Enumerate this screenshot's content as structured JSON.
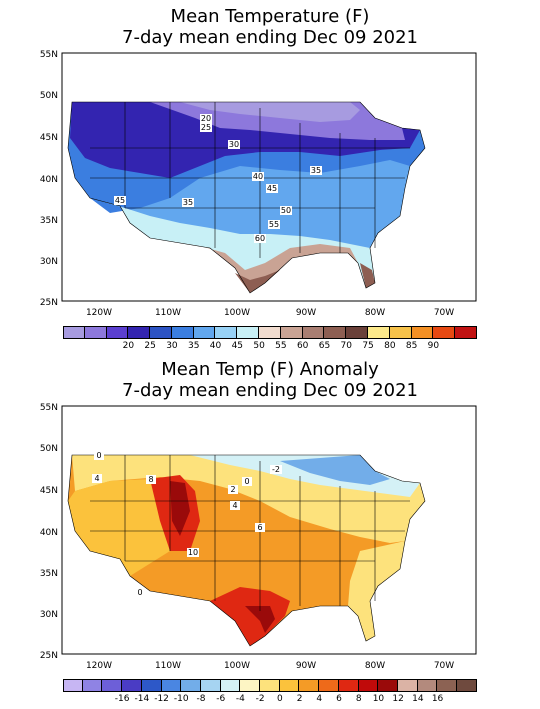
{
  "maps": [
    {
      "title_line1": "Mean Temperature (F)",
      "title_line2": "7-day mean ending Dec 09 2021",
      "lat_labels": [
        "55N",
        "50N",
        "45N",
        "40N",
        "35N",
        "30N",
        "25N"
      ],
      "lon_labels": [
        "120W",
        "110W",
        "100W",
        "90W",
        "80W",
        "70W"
      ],
      "contour_labels": [
        "20",
        "25",
        "30",
        "35",
        "40",
        "45",
        "45",
        "50",
        "55",
        "60",
        "35"
      ],
      "legend_colors": [
        "#a79be0",
        "#8d78dc",
        "#5b3fd0",
        "#3324b0",
        "#2c53c4",
        "#3b7ee0",
        "#62a7ee",
        "#98d2f6",
        "#c8f0f6",
        "#f1dccf",
        "#c9a394",
        "#a97e72",
        "#8d5e52",
        "#6a4039",
        "#fce98b",
        "#f6c24a",
        "#f39024",
        "#e64912",
        "#c11212"
      ],
      "legend_ticks": [
        "20",
        "25",
        "30",
        "35",
        "40",
        "45",
        "50",
        "55",
        "60",
        "65",
        "70",
        "75",
        "80",
        "85",
        "90"
      ]
    },
    {
      "title_line1": "Mean Temp (F) Anomaly",
      "title_line2": "7-day mean ending Dec 09 2021",
      "lat_labels": [
        "55N",
        "50N",
        "45N",
        "40N",
        "35N",
        "30N",
        "25N"
      ],
      "lon_labels": [
        "120W",
        "110W",
        "100W",
        "90W",
        "80W",
        "70W"
      ],
      "contour_labels": [
        "0",
        "4",
        "8",
        "2",
        "0",
        "-2",
        "4",
        "6",
        "10",
        "0"
      ],
      "legend_colors": [
        "#c7b6f3",
        "#8f83e4",
        "#6d5fd8",
        "#4a3cc4",
        "#2d58c8",
        "#4a86e2",
        "#72ade9",
        "#a6d4f2",
        "#d4f1f6",
        "#fdf5c4",
        "#fde27c",
        "#fbc23c",
        "#f49b26",
        "#ee6a1a",
        "#df2812",
        "#c00a0a",
        "#9a0a0a",
        "#dbb3a5",
        "#b38a7d",
        "#8c6253",
        "#6f4a3e"
      ],
      "legend_ticks": [
        "-16",
        "-14",
        "-12",
        "-10",
        "-8",
        "-6",
        "-4",
        "-2",
        "0",
        "2",
        "4",
        "6",
        "8",
        "10",
        "12",
        "14",
        "16"
      ]
    }
  ]
}
